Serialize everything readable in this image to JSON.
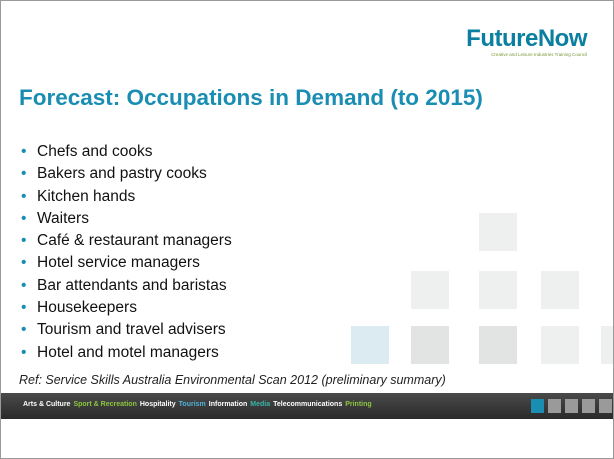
{
  "logo": {
    "name": "FutureNow",
    "tagline": "Creative and Leisure Industries Training Council"
  },
  "title": "Forecast: Occupations in Demand (to 2015)",
  "bullets": [
    "Chefs and cooks",
    "Bakers and pastry cooks",
    "Kitchen hands",
    "Waiters",
    "Café & restaurant managers",
    "Hotel service managers",
    "Bar attendants and baristas",
    "Housekeepers",
    "Tourism and travel advisers",
    "Hotel and motel managers"
  ],
  "reference": "Ref: Service Skills Australia Environmental Scan 2012 (preliminary summary)",
  "footer": {
    "items": [
      {
        "text": "Arts & Culture",
        "color": "#ffffff"
      },
      {
        "text": "Sport & Recreation",
        "color": "#8dc63f"
      },
      {
        "text": "Hospitality",
        "color": "#ffffff"
      },
      {
        "text": "Tourism",
        "color": "#4fb3d9"
      },
      {
        "text": "Information",
        "color": "#ffffff"
      },
      {
        "text": "Media",
        "color": "#3ab5a8"
      },
      {
        "text": "Telecommunications",
        "color": "#ffffff"
      },
      {
        "text": "Printing",
        "color": "#8dc63f"
      }
    ]
  }
}
